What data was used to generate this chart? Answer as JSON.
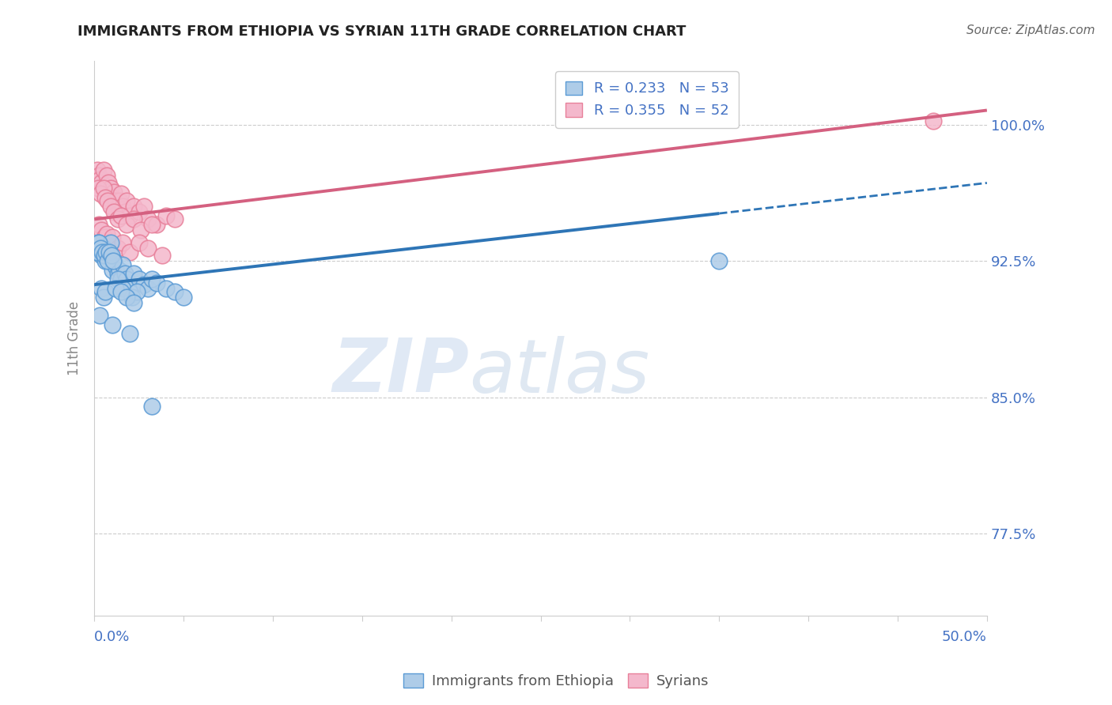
{
  "title": "IMMIGRANTS FROM ETHIOPIA VS SYRIAN 11TH GRADE CORRELATION CHART",
  "source": "Source: ZipAtlas.com",
  "ylabel": "11th Grade",
  "ytick_vals": [
    77.5,
    85.0,
    92.5,
    100.0
  ],
  "ytick_labels": [
    "77.5%",
    "85.0%",
    "92.5%",
    "100.0%"
  ],
  "xmin": 0.0,
  "xmax": 50.0,
  "ymin": 73.0,
  "ymax": 103.5,
  "legend_blue_label": "R = 0.233   N = 53",
  "legend_pink_label": "R = 0.355   N = 52",
  "legend_bottom_blue": "Immigrants from Ethiopia",
  "legend_bottom_pink": "Syrians",
  "watermark_zip": "ZIP",
  "watermark_atlas": "atlas",
  "blue_fill": "#AECCE8",
  "blue_edge": "#5B9BD5",
  "pink_fill": "#F4B8CC",
  "pink_edge": "#E8809A",
  "blue_line_color": "#2E75B6",
  "pink_line_color": "#D46080",
  "title_color": "#222222",
  "axis_label_color": "#4472C4",
  "ylabel_color": "#888888",
  "blue_scatter_x": [
    0.2,
    0.3,
    0.4,
    0.5,
    0.6,
    0.7,
    0.8,
    0.9,
    1.0,
    1.1,
    1.2,
    1.3,
    1.4,
    1.5,
    1.6,
    1.7,
    1.8,
    2.0,
    2.2,
    2.5,
    2.8,
    3.0,
    3.2,
    3.5,
    4.0,
    4.5,
    5.0,
    0.15,
    0.25,
    0.35,
    0.45,
    0.55,
    0.65,
    0.75,
    0.85,
    0.95,
    1.05,
    1.3,
    1.6,
    2.1,
    2.4,
    0.4,
    0.5,
    0.6,
    1.2,
    1.5,
    1.8,
    2.2,
    0.3,
    1.0,
    2.0,
    3.2,
    35.0
  ],
  "blue_scatter_y": [
    93.5,
    93.0,
    92.8,
    93.2,
    92.5,
    93.0,
    92.8,
    93.5,
    92.0,
    92.5,
    92.2,
    91.8,
    92.0,
    91.5,
    92.3,
    91.8,
    91.5,
    91.0,
    91.8,
    91.5,
    91.2,
    91.0,
    91.5,
    91.3,
    91.0,
    90.8,
    90.5,
    93.0,
    93.5,
    93.2,
    93.0,
    92.8,
    93.0,
    92.5,
    93.0,
    92.8,
    92.5,
    91.5,
    91.0,
    90.5,
    90.8,
    91.0,
    90.5,
    90.8,
    91.0,
    90.8,
    90.5,
    90.2,
    89.5,
    89.0,
    88.5,
    84.5,
    92.5
  ],
  "pink_scatter_x": [
    0.15,
    0.25,
    0.3,
    0.4,
    0.5,
    0.6,
    0.7,
    0.8,
    0.9,
    1.0,
    1.1,
    1.2,
    1.3,
    1.4,
    1.5,
    1.6,
    1.7,
    1.8,
    2.0,
    2.2,
    2.5,
    2.8,
    3.0,
    3.5,
    4.0,
    4.5,
    0.2,
    0.35,
    0.5,
    0.6,
    0.75,
    0.9,
    1.1,
    1.3,
    1.5,
    1.8,
    2.2,
    2.6,
    3.2,
    0.25,
    0.4,
    0.55,
    0.7,
    0.85,
    1.0,
    1.3,
    1.6,
    2.0,
    2.5,
    3.0,
    3.8,
    47.0
  ],
  "pink_scatter_y": [
    97.5,
    97.2,
    97.0,
    96.8,
    97.5,
    96.5,
    97.2,
    96.8,
    96.5,
    96.0,
    96.3,
    95.8,
    95.5,
    95.8,
    96.2,
    95.5,
    95.2,
    95.8,
    95.0,
    95.5,
    95.2,
    95.5,
    94.8,
    94.5,
    95.0,
    94.8,
    96.5,
    96.2,
    96.5,
    96.0,
    95.8,
    95.5,
    95.2,
    94.8,
    95.0,
    94.5,
    94.8,
    94.2,
    94.5,
    94.5,
    94.2,
    93.8,
    94.0,
    93.5,
    93.8,
    93.2,
    93.5,
    93.0,
    93.5,
    93.2,
    92.8,
    100.2
  ],
  "blue_trend_x0": 0.0,
  "blue_trend_y0": 91.2,
  "blue_trend_x1": 50.0,
  "blue_trend_y1": 96.8,
  "blue_solid_end_x": 35.0,
  "pink_trend_x0": 0.0,
  "pink_trend_y0": 94.8,
  "pink_trend_x1": 50.0,
  "pink_trend_y1": 100.8
}
